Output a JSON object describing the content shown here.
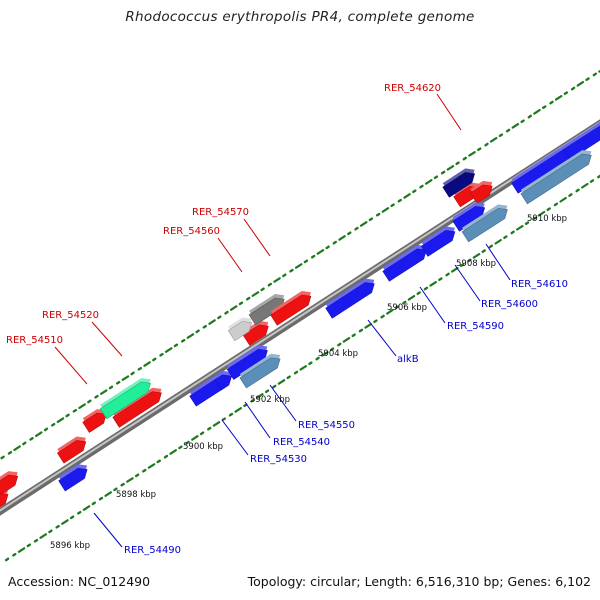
{
  "title": "Rhodococcus erythropolis PR4, complete genome",
  "footer": {
    "accession": "Accession: NC_012490",
    "summary": "Topology: circular; Length: 6,516,310 bp; Genes: 6,102"
  },
  "colors": {
    "backbone": "#8c8c8c",
    "tick": "#1f7a1f",
    "forward_label": "#cc0000",
    "reverse_label": "#0000cc",
    "scale_text": "#111111"
  },
  "scale_labels": [
    "5896 kbp",
    "5898 kbp",
    "5900 kbp",
    "5902 kbp",
    "5904 kbp",
    "5906 kbp",
    "5908 kbp",
    "5910 kbp"
  ],
  "forward_labels": [
    "RER_54510",
    "RER_54520",
    "RER_54560",
    "RER_54570",
    "RER_54620"
  ],
  "reverse_labels": [
    "RER_54490",
    "RER_54530",
    "RER_54540",
    "RER_54550",
    "alkB",
    "RER_54590",
    "RER_54600",
    "RER_54610"
  ],
  "forward_genes": [
    {
      "id": "f0",
      "color": "#5b8fb8"
    },
    {
      "id": "f1",
      "color": "#ee1111"
    },
    {
      "id": "f2",
      "color": "#ee1111"
    },
    {
      "id": "f3",
      "color": "#ee1111"
    },
    {
      "id": "f4",
      "color": "#ee1111"
    },
    {
      "id": "f5",
      "color": "#ee1111"
    },
    {
      "id": "f6",
      "color": "#22ee99"
    },
    {
      "id": "f7",
      "color": "#ee1111"
    },
    {
      "id": "f8",
      "color": "#cccccc"
    },
    {
      "id": "f9",
      "color": "#777777"
    },
    {
      "id": "f10",
      "color": "#ee1111"
    },
    {
      "id": "f11",
      "color": "#ee1111"
    },
    {
      "id": "f12",
      "color": "#0a0a80"
    },
    {
      "id": "f13",
      "color": "#ee1111"
    }
  ],
  "reverse_genes": [
    {
      "id": "r0",
      "color": "#1a1aee"
    },
    {
      "id": "r1",
      "color": "#1a1aee"
    },
    {
      "id": "r2",
      "color": "#1a1aee"
    },
    {
      "id": "r3",
      "color": "#1a1aee"
    },
    {
      "id": "r4",
      "color": "#5b8fb8"
    },
    {
      "id": "r5",
      "color": "#1a1aee"
    },
    {
      "id": "r6",
      "color": "#1a1aee"
    },
    {
      "id": "r7",
      "color": "#1a1aee"
    },
    {
      "id": "r8",
      "color": "#1a1aee"
    },
    {
      "id": "r9",
      "color": "#5b8fb8"
    },
    {
      "id": "r10",
      "color": "#1a1aee"
    },
    {
      "id": "r11",
      "color": "#1a1aee"
    },
    {
      "id": "r12",
      "color": "#5b8fb8"
    }
  ]
}
